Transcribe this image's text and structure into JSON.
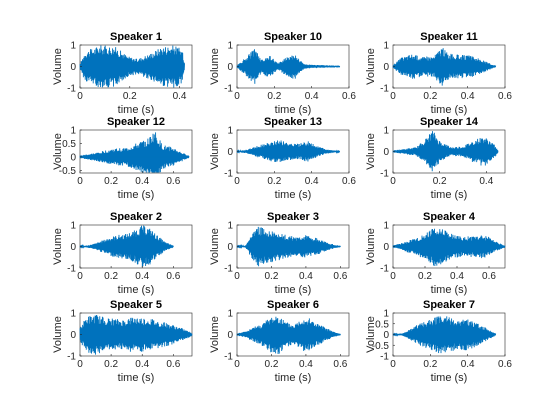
{
  "chart_data": [
    {
      "type": "line",
      "title": "Speaker 1",
      "xlabel": "time (s)",
      "ylabel": "Volume",
      "duration": 0.42,
      "xlim": [
        0,
        0.45
      ],
      "ylim": [
        -1,
        1
      ],
      "xticks": [
        "0",
        "0.2",
        "0.4"
      ],
      "yticks": [
        "-1",
        "0",
        "1"
      ],
      "color": "#0072bd",
      "envelope": [
        [
          0,
          0.12
        ],
        [
          0.02,
          0.7
        ],
        [
          0.08,
          1
        ],
        [
          0.14,
          0.95
        ],
        [
          0.19,
          0.5
        ],
        [
          0.23,
          0.35
        ],
        [
          0.28,
          0.6
        ],
        [
          0.33,
          0.95
        ],
        [
          0.38,
          1
        ],
        [
          0.41,
          0.8
        ],
        [
          0.42,
          0.2
        ]
      ]
    },
    {
      "type": "line",
      "title": "Speaker 10",
      "xlabel": "time (s)",
      "ylabel": "Volume",
      "duration": 0.55,
      "xlim": [
        0,
        0.6
      ],
      "ylim": [
        -1,
        1
      ],
      "xticks": [
        "0",
        "0.2",
        "0.4",
        "0.6"
      ],
      "yticks": [
        "-1",
        "0",
        "1"
      ],
      "color": "#0072bd",
      "envelope": [
        [
          0,
          0.05
        ],
        [
          0.05,
          0.45
        ],
        [
          0.1,
          0.9
        ],
        [
          0.13,
          0.3
        ],
        [
          0.17,
          0.55
        ],
        [
          0.22,
          0.15
        ],
        [
          0.27,
          0.5
        ],
        [
          0.31,
          0.6
        ],
        [
          0.36,
          0.1
        ],
        [
          0.42,
          0.08
        ],
        [
          0.5,
          0.05
        ],
        [
          0.55,
          0.04
        ]
      ]
    },
    {
      "type": "line",
      "title": "Speaker 11",
      "xlabel": "time (s)",
      "ylabel": "Volume",
      "duration": 0.55,
      "xlim": [
        0,
        0.6
      ],
      "ylim": [
        -1,
        1
      ],
      "xticks": [
        "0",
        "0.2",
        "0.4",
        "0.6"
      ],
      "yticks": [
        "-1",
        "0",
        "1"
      ],
      "color": "#0072bd",
      "envelope": [
        [
          0,
          0.05
        ],
        [
          0.04,
          0.4
        ],
        [
          0.1,
          0.6
        ],
        [
          0.16,
          0.45
        ],
        [
          0.22,
          0.5
        ],
        [
          0.26,
          0.95
        ],
        [
          0.3,
          0.6
        ],
        [
          0.36,
          0.55
        ],
        [
          0.42,
          0.5
        ],
        [
          0.48,
          0.3
        ],
        [
          0.53,
          0.1
        ],
        [
          0.55,
          0.05
        ]
      ]
    },
    {
      "type": "line",
      "title": "Speaker 12",
      "xlabel": "time (s)",
      "ylabel": "Volume",
      "duration": 0.7,
      "xlim": [
        0,
        0.72
      ],
      "ylim": [
        -0.6,
        1
      ],
      "xticks": [
        "0",
        "0.2",
        "0.4",
        "0.6"
      ],
      "yticks": [
        "-0.5",
        "0",
        "0.5",
        "1"
      ],
      "color": "#0072bd",
      "envelope": [
        [
          0,
          0.05
        ],
        [
          0.05,
          0.1
        ],
        [
          0.1,
          0.15
        ],
        [
          0.2,
          0.3
        ],
        [
          0.3,
          0.35
        ],
        [
          0.38,
          0.55
        ],
        [
          0.44,
          0.7
        ],
        [
          0.48,
          1
        ],
        [
          0.53,
          0.45
        ],
        [
          0.6,
          0.35
        ],
        [
          0.66,
          0.15
        ],
        [
          0.7,
          0.05
        ]
      ]
    },
    {
      "type": "line",
      "title": "Speaker 13",
      "xlabel": "time (s)",
      "ylabel": "Volume",
      "duration": 0.55,
      "xlim": [
        0,
        0.6
      ],
      "ylim": [
        -1,
        1
      ],
      "xticks": [
        "0",
        "0.2",
        "0.4",
        "0.6"
      ],
      "yticks": [
        "-1",
        "0",
        "1"
      ],
      "color": "#0072bd",
      "envelope": [
        [
          0,
          0.02
        ],
        [
          0.06,
          0.1
        ],
        [
          0.12,
          0.3
        ],
        [
          0.18,
          0.45
        ],
        [
          0.22,
          0.55
        ],
        [
          0.27,
          0.45
        ],
        [
          0.33,
          0.35
        ],
        [
          0.38,
          0.5
        ],
        [
          0.43,
          0.25
        ],
        [
          0.48,
          0.1
        ],
        [
          0.52,
          0.05
        ],
        [
          0.55,
          0.02
        ]
      ]
    },
    {
      "type": "line",
      "title": "Speaker 14",
      "xlabel": "time (s)",
      "ylabel": "Volume",
      "duration": 0.45,
      "xlim": [
        0,
        0.48
      ],
      "ylim": [
        -1,
        1
      ],
      "xticks": [
        "0",
        "0.2",
        "0.4"
      ],
      "yticks": [
        "-1",
        "0",
        "1"
      ],
      "color": "#0072bd",
      "envelope": [
        [
          0,
          0.05
        ],
        [
          0.05,
          0.12
        ],
        [
          0.1,
          0.2
        ],
        [
          0.14,
          0.6
        ],
        [
          0.17,
          1
        ],
        [
          0.2,
          0.5
        ],
        [
          0.25,
          0.2
        ],
        [
          0.3,
          0.25
        ],
        [
          0.35,
          0.55
        ],
        [
          0.39,
          0.7
        ],
        [
          0.43,
          0.4
        ],
        [
          0.45,
          0.05
        ]
      ]
    },
    {
      "type": "line",
      "title": "Speaker 2",
      "xlabel": "time (s)",
      "ylabel": "Volume",
      "duration": 0.6,
      "xlim": [
        0,
        0.72
      ],
      "ylim": [
        -1,
        1
      ],
      "xticks": [
        "0",
        "0.2",
        "0.4",
        "0.6"
      ],
      "yticks": [
        "-1",
        "0",
        "1"
      ],
      "color": "#0072bd",
      "envelope": [
        [
          0,
          0.02
        ],
        [
          0.05,
          0.05
        ],
        [
          0.1,
          0.15
        ],
        [
          0.15,
          0.3
        ],
        [
          0.2,
          0.45
        ],
        [
          0.25,
          0.55
        ],
        [
          0.3,
          0.6
        ],
        [
          0.35,
          0.75
        ],
        [
          0.4,
          1
        ],
        [
          0.45,
          0.85
        ],
        [
          0.5,
          0.5
        ],
        [
          0.55,
          0.2
        ],
        [
          0.6,
          0.05
        ]
      ]
    },
    {
      "type": "line",
      "title": "Speaker 3",
      "xlabel": "time (s)",
      "ylabel": "Volume",
      "duration": 0.6,
      "xlim": [
        0,
        0.65
      ],
      "ylim": [
        -1,
        1
      ],
      "xticks": [
        "0",
        "0.2",
        "0.4",
        "0.6"
      ],
      "yticks": [
        "-1",
        "0",
        "1"
      ],
      "color": "#0072bd",
      "envelope": [
        [
          0,
          0.02
        ],
        [
          0.05,
          0.05
        ],
        [
          0.08,
          0.5
        ],
        [
          0.12,
          0.95
        ],
        [
          0.17,
          0.8
        ],
        [
          0.22,
          0.7
        ],
        [
          0.28,
          0.55
        ],
        [
          0.34,
          0.45
        ],
        [
          0.4,
          0.55
        ],
        [
          0.46,
          0.4
        ],
        [
          0.52,
          0.2
        ],
        [
          0.57,
          0.08
        ],
        [
          0.6,
          0.03
        ]
      ]
    },
    {
      "type": "line",
      "title": "Speaker 4",
      "xlabel": "time (s)",
      "ylabel": "Volume",
      "duration": 0.7,
      "xlim": [
        0,
        0.7
      ],
      "ylim": [
        -1,
        1
      ],
      "xticks": [
        "0",
        "0.2",
        "0.4",
        "0.6"
      ],
      "yticks": [
        "-1",
        "0",
        "1"
      ],
      "color": "#0072bd",
      "envelope": [
        [
          0,
          0.05
        ],
        [
          0.05,
          0.15
        ],
        [
          0.1,
          0.3
        ],
        [
          0.16,
          0.45
        ],
        [
          0.22,
          0.7
        ],
        [
          0.27,
          1
        ],
        [
          0.32,
          0.8
        ],
        [
          0.38,
          0.55
        ],
        [
          0.44,
          0.45
        ],
        [
          0.5,
          0.5
        ],
        [
          0.56,
          0.55
        ],
        [
          0.6,
          0.45
        ],
        [
          0.65,
          0.2
        ],
        [
          0.7,
          0.05
        ]
      ]
    },
    {
      "type": "line",
      "title": "Speaker 5",
      "xlabel": "time (s)",
      "ylabel": "Volume",
      "duration": 0.72,
      "xlim": [
        0,
        0.72
      ],
      "ylim": [
        -1,
        1
      ],
      "xticks": [
        "0",
        "0.2",
        "0.4",
        "0.6"
      ],
      "yticks": [
        "-1",
        "0",
        "1"
      ],
      "color": "#0072bd",
      "envelope": [
        [
          0,
          0.3
        ],
        [
          0.04,
          0.85
        ],
        [
          0.1,
          0.95
        ],
        [
          0.16,
          0.8
        ],
        [
          0.22,
          0.75
        ],
        [
          0.28,
          0.7
        ],
        [
          0.34,
          0.85
        ],
        [
          0.4,
          0.8
        ],
        [
          0.46,
          0.75
        ],
        [
          0.52,
          0.6
        ],
        [
          0.58,
          0.5
        ],
        [
          0.64,
          0.35
        ],
        [
          0.7,
          0.15
        ],
        [
          0.72,
          0.05
        ]
      ]
    },
    {
      "type": "line",
      "title": "Speaker 6",
      "xlabel": "time (s)",
      "ylabel": "Volume",
      "duration": 0.6,
      "xlim": [
        0,
        0.65
      ],
      "ylim": [
        -1,
        1
      ],
      "xticks": [
        "0",
        "0.2",
        "0.4",
        "0.6"
      ],
      "yticks": [
        "-1",
        "0",
        "1"
      ],
      "color": "#0072bd",
      "envelope": [
        [
          0,
          0.05
        ],
        [
          0.05,
          0.15
        ],
        [
          0.1,
          0.35
        ],
        [
          0.15,
          0.55
        ],
        [
          0.2,
          0.85
        ],
        [
          0.24,
          0.95
        ],
        [
          0.28,
          0.6
        ],
        [
          0.33,
          0.45
        ],
        [
          0.38,
          0.8
        ],
        [
          0.42,
          0.75
        ],
        [
          0.47,
          0.5
        ],
        [
          0.52,
          0.3
        ],
        [
          0.57,
          0.1
        ],
        [
          0.6,
          0.03
        ]
      ]
    },
    {
      "type": "line",
      "title": "Speaker 7",
      "xlabel": "time (s)",
      "ylabel": "Volume",
      "duration": 0.55,
      "xlim": [
        0,
        0.6
      ],
      "ylim": [
        -1,
        1
      ],
      "xticks": [
        "0",
        "0.2",
        "0.4",
        "0.6"
      ],
      "yticks": [
        "-1",
        "-0.5",
        "0",
        "0.5",
        "1"
      ],
      "color": "#0072bd",
      "envelope": [
        [
          0,
          0.02
        ],
        [
          0.05,
          0.05
        ],
        [
          0.1,
          0.3
        ],
        [
          0.15,
          0.55
        ],
        [
          0.2,
          0.7
        ],
        [
          0.25,
          0.9
        ],
        [
          0.3,
          0.85
        ],
        [
          0.35,
          0.7
        ],
        [
          0.4,
          0.75
        ],
        [
          0.45,
          0.55
        ],
        [
          0.5,
          0.3
        ],
        [
          0.55,
          0.05
        ]
      ]
    }
  ]
}
